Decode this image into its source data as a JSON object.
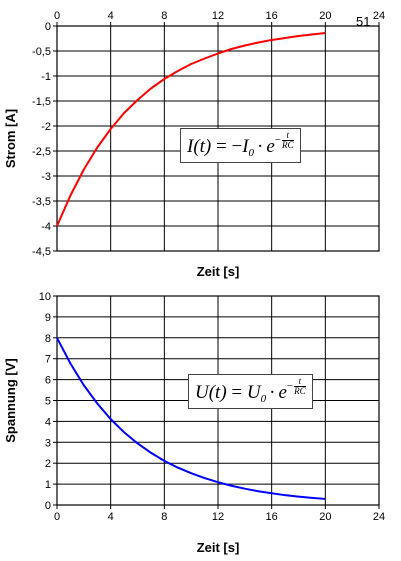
{
  "page_number": "51",
  "formulas": {
    "current": {
      "lhs": "I(t)",
      "eq": " = ",
      "neg": "−",
      "var": "I",
      "sub": "0",
      "dot": "·",
      "base": "e",
      "exp_sign": "−",
      "exp_num": "t",
      "exp_den": "RC"
    },
    "voltage": {
      "lhs": "U(t)",
      "eq": " = ",
      "var": "U",
      "sub": "0",
      "dot": "·",
      "base": "e",
      "exp_sign": "−",
      "exp_num": "t",
      "exp_den": "RC"
    }
  },
  "chart_data": [
    {
      "type": "line",
      "xlabel": "Zeit [s]",
      "ylabel": "Strom [A]",
      "xlim": [
        0,
        24
      ],
      "ylim": [
        -4.5,
        0
      ],
      "x_ticks": [
        0,
        4,
        8,
        12,
        16,
        20,
        24
      ],
      "y_ticks": [
        0,
        -0.5,
        -1,
        -1.5,
        -2,
        -2.5,
        -3,
        -3.5,
        -4,
        -4.5
      ],
      "y_tick_labels": [
        "0",
        "-0,5",
        "-1",
        "-1,5",
        "-2",
        "-2,5",
        "-3",
        "-3,5",
        "-4",
        "-4,5"
      ],
      "x_axis_position": "top",
      "grid": true,
      "series": [
        {
          "color": "#ff0000",
          "x": [
            0,
            1,
            2,
            3,
            4,
            5,
            6,
            7,
            8,
            9,
            10,
            11,
            12,
            13,
            14,
            15,
            16,
            17,
            18,
            19,
            20
          ],
          "y": [
            -4.0,
            -3.39,
            -2.87,
            -2.43,
            -2.06,
            -1.74,
            -1.48,
            -1.25,
            -1.06,
            -0.9,
            -0.76,
            -0.65,
            -0.55,
            -0.46,
            -0.39,
            -0.33,
            -0.28,
            -0.24,
            -0.2,
            -0.17,
            -0.14
          ]
        }
      ]
    },
    {
      "type": "line",
      "xlabel": "Zeit [s]",
      "ylabel": "Spannung [V]",
      "xlim": [
        0,
        24
      ],
      "ylim": [
        0,
        10
      ],
      "x_ticks": [
        0,
        4,
        8,
        12,
        16,
        20,
        24
      ],
      "y_ticks": [
        0,
        1,
        2,
        3,
        4,
        5,
        6,
        7,
        8,
        9,
        10
      ],
      "y_tick_labels": [
        "0",
        "1",
        "2",
        "3",
        "4",
        "5",
        "6",
        "7",
        "8",
        "9",
        "10"
      ],
      "x_axis_position": "bottom",
      "grid": true,
      "series": [
        {
          "color": "#0000ff",
          "x": [
            0,
            1,
            2,
            3,
            4,
            5,
            6,
            7,
            8,
            9,
            10,
            11,
            12,
            13,
            14,
            15,
            16,
            17,
            18,
            19,
            20
          ],
          "y": [
            8.0,
            6.77,
            5.73,
            4.86,
            4.11,
            3.48,
            2.95,
            2.5,
            2.11,
            1.79,
            1.52,
            1.29,
            1.09,
            0.92,
            0.78,
            0.66,
            0.56,
            0.47,
            0.4,
            0.34,
            0.29
          ]
        }
      ]
    }
  ]
}
